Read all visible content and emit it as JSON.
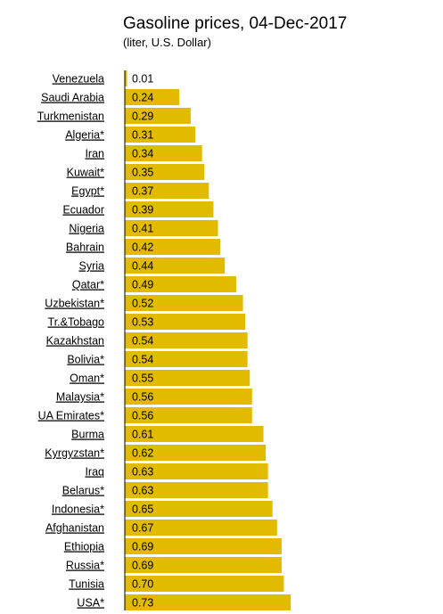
{
  "title": "Gasoline prices, 04-Dec-2017",
  "subtitle": "(liter, U.S. Dollar)",
  "chart_data": {
    "type": "bar",
    "orientation": "horizontal",
    "title": "Gasoline prices, 04-Dec-2017",
    "subtitle": "(liter, U.S. Dollar)",
    "xlabel": "",
    "ylabel": "",
    "grid": false,
    "bar_color": "#e2bb00",
    "categories": [
      "Venezuela",
      "Saudi Arabia",
      "Turkmenistan",
      "Algeria*",
      "Iran",
      "Kuwait*",
      "Egypt*",
      "Ecuador",
      "Nigeria",
      "Bahrain",
      "Syria",
      "Qatar*",
      "Uzbekistan*",
      "Tr.&Tobago",
      "Kazakhstan",
      "Bolivia*",
      "Oman*",
      "Malaysia*",
      "UA Emirates*",
      "Burma",
      "Kyrgyzstan*",
      "Iraq",
      "Belarus*",
      "Indonesia*",
      "Afghanistan",
      "Ethiopia",
      "Russia*",
      "Tunisia",
      "USA*"
    ],
    "values": [
      0.01,
      0.24,
      0.29,
      0.31,
      0.34,
      0.35,
      0.37,
      0.39,
      0.41,
      0.42,
      0.44,
      0.49,
      0.52,
      0.53,
      0.54,
      0.54,
      0.55,
      0.56,
      0.56,
      0.61,
      0.62,
      0.63,
      0.63,
      0.65,
      0.67,
      0.69,
      0.69,
      0.7,
      0.73
    ],
    "value_labels": [
      "0.01",
      "0.24",
      "0.29",
      "0.31",
      "0.34",
      "0.35",
      "0.37",
      "0.39",
      "0.41",
      "0.42",
      "0.44",
      "0.49",
      "0.52",
      "0.53",
      "0.54",
      "0.54",
      "0.55",
      "0.56",
      "0.56",
      "0.61",
      "0.62",
      "0.63",
      "0.63",
      "0.65",
      "0.67",
      "0.69",
      "0.69",
      "0.70",
      "0.73"
    ]
  }
}
